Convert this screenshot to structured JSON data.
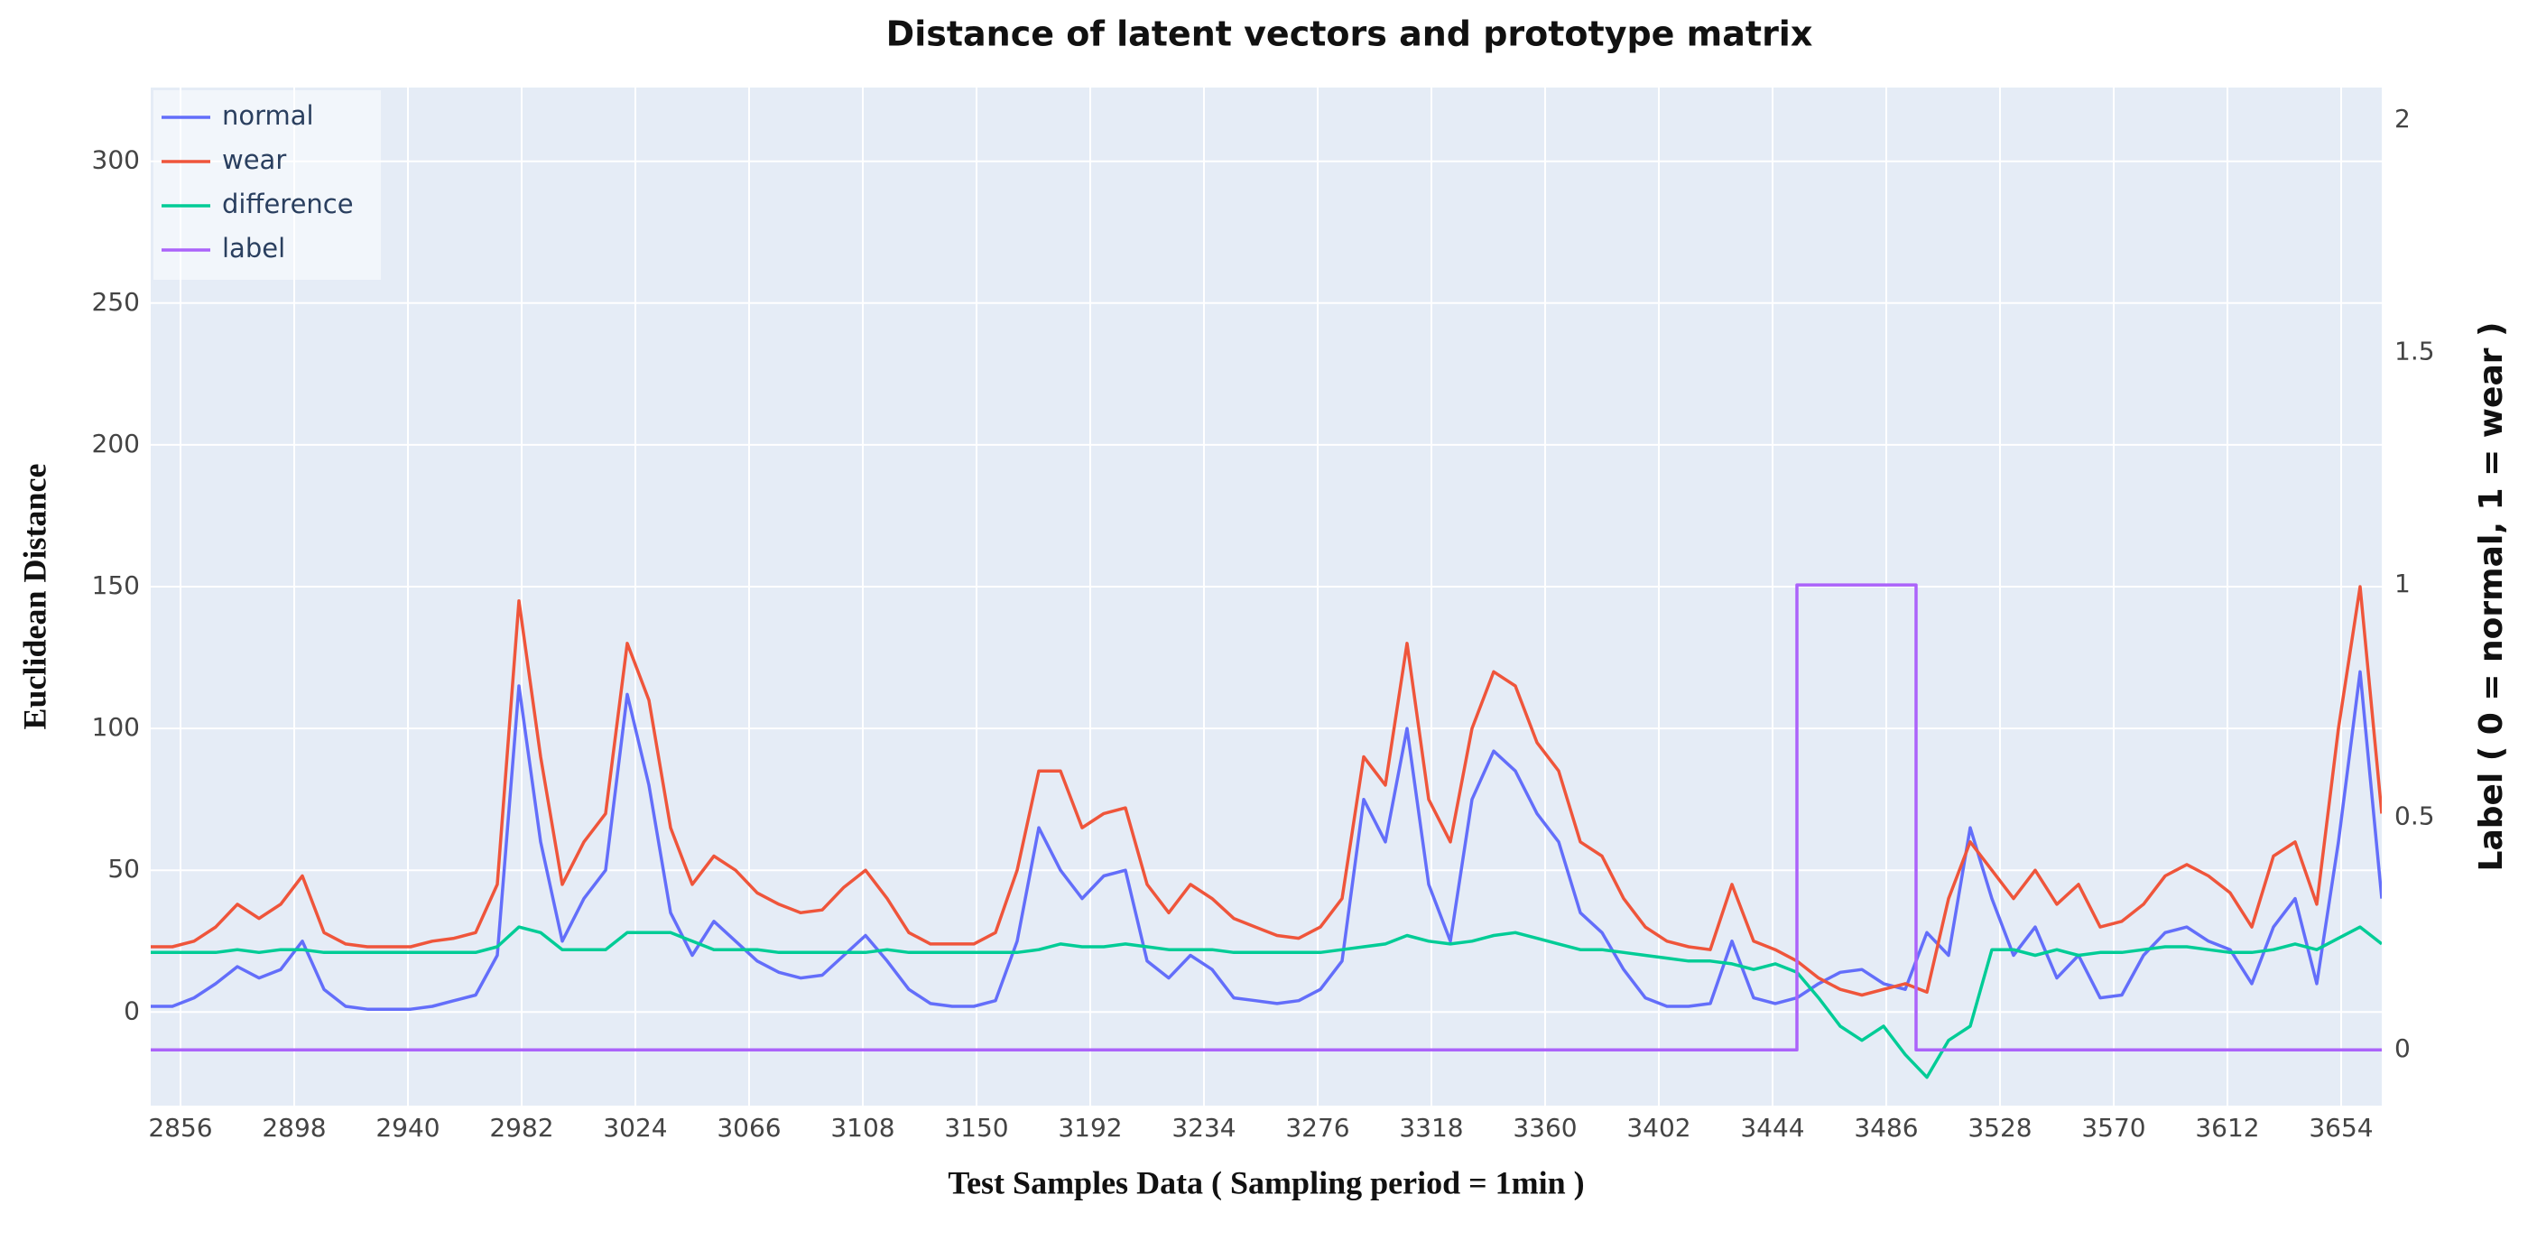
{
  "chart_data": {
    "type": "line",
    "title": "Distance of latent vectors and prototype matrix",
    "x_label": "Test Samples Data ( Sampling period = 1min )",
    "y_label": "Euclidean Distance",
    "y2_label": "Label ( 0 = normal, 1 = wear )",
    "x": [
      2845,
      2853,
      2861,
      2869,
      2877,
      2885,
      2893,
      2901,
      2909,
      2917,
      2925,
      2933,
      2941,
      2949,
      2957,
      2965,
      2973,
      2981,
      2989,
      2997,
      3005,
      3013,
      3021,
      3029,
      3037,
      3045,
      3053,
      3061,
      3069,
      3077,
      3085,
      3093,
      3101,
      3109,
      3117,
      3125,
      3133,
      3141,
      3149,
      3157,
      3165,
      3173,
      3181,
      3189,
      3197,
      3205,
      3213,
      3221,
      3229,
      3237,
      3245,
      3253,
      3261,
      3269,
      3277,
      3285,
      3293,
      3301,
      3309,
      3317,
      3325,
      3333,
      3341,
      3349,
      3357,
      3365,
      3373,
      3381,
      3389,
      3397,
      3405,
      3413,
      3421,
      3429,
      3437,
      3445,
      3453,
      3461,
      3469,
      3477,
      3485,
      3493,
      3501,
      3509,
      3517,
      3525,
      3533,
      3541,
      3549,
      3557,
      3565,
      3573,
      3581,
      3589,
      3597,
      3605,
      3613,
      3621,
      3629,
      3637,
      3645,
      3653,
      3661,
      3669
    ],
    "series": [
      {
        "name": "normal",
        "color": "#636efa",
        "values": [
          2,
          2,
          5,
          10,
          16,
          12,
          15,
          25,
          8,
          2,
          1,
          1,
          1,
          2,
          4,
          6,
          20,
          115,
          60,
          25,
          40,
          50,
          112,
          80,
          35,
          20,
          32,
          25,
          18,
          14,
          12,
          13,
          20,
          27,
          18,
          8,
          3,
          2,
          2,
          4,
          25,
          65,
          50,
          40,
          48,
          50,
          18,
          12,
          20,
          15,
          5,
          4,
          3,
          4,
          8,
          18,
          75,
          60,
          100,
          45,
          25,
          75,
          92,
          85,
          70,
          60,
          35,
          28,
          15,
          5,
          2,
          2,
          3,
          25,
          5,
          3,
          5,
          10,
          14,
          15,
          10,
          8,
          28,
          20,
          65,
          40,
          20,
          30,
          12,
          20,
          5,
          6,
          20,
          28,
          30,
          25,
          22,
          10,
          30,
          40,
          10,
          60,
          120,
          40
        ]
      },
      {
        "name": "wear",
        "color": "#ef553b",
        "values": [
          23,
          23,
          25,
          30,
          38,
          33,
          38,
          48,
          28,
          24,
          23,
          23,
          23,
          25,
          26,
          28,
          45,
          145,
          90,
          45,
          60,
          70,
          130,
          110,
          65,
          45,
          55,
          50,
          42,
          38,
          35,
          36,
          44,
          50,
          40,
          28,
          24,
          24,
          24,
          28,
          50,
          85,
          85,
          65,
          70,
          72,
          45,
          35,
          45,
          40,
          33,
          30,
          27,
          26,
          30,
          40,
          90,
          80,
          130,
          75,
          60,
          100,
          120,
          115,
          95,
          85,
          60,
          55,
          40,
          30,
          25,
          23,
          22,
          45,
          25,
          22,
          18,
          12,
          8,
          6,
          8,
          10,
          7,
          40,
          60,
          50,
          40,
          50,
          38,
          45,
          30,
          32,
          38,
          48,
          52,
          48,
          42,
          30,
          55,
          60,
          38,
          100,
          150,
          70
        ]
      },
      {
        "name": "difference",
        "color": "#00cc96",
        "values": [
          21,
          21,
          21,
          21,
          22,
          21,
          22,
          22,
          21,
          21,
          21,
          21,
          21,
          21,
          21,
          21,
          23,
          30,
          28,
          22,
          22,
          22,
          28,
          28,
          28,
          25,
          22,
          22,
          22,
          21,
          21,
          21,
          21,
          21,
          22,
          21,
          21,
          21,
          21,
          21,
          21,
          22,
          24,
          23,
          23,
          24,
          23,
          22,
          22,
          22,
          21,
          21,
          21,
          21,
          21,
          22,
          23,
          24,
          27,
          25,
          24,
          25,
          27,
          28,
          26,
          24,
          22,
          22,
          21,
          20,
          19,
          18,
          18,
          17,
          15,
          17,
          14,
          5,
          -5,
          -10,
          -5,
          -15,
          -23,
          -10,
          -5,
          22,
          22,
          20,
          22,
          20,
          21,
          21,
          22,
          23,
          23,
          22,
          21,
          21,
          22,
          24,
          22,
          26,
          30,
          24
        ]
      },
      {
        "name": "label",
        "color": "#ab63fa",
        "axis": "y2",
        "x": [
          2845,
          3453,
          3453,
          3497,
          3497,
          3669
        ],
        "values": [
          0,
          0,
          1,
          1,
          0,
          0
        ]
      }
    ],
    "xlim": [
      2845,
      3669
    ],
    "xticks": [
      2856,
      2898,
      2940,
      2982,
      3024,
      3066,
      3108,
      3150,
      3192,
      3234,
      3276,
      3318,
      3360,
      3402,
      3444,
      3486,
      3528,
      3570,
      3612,
      3654
    ],
    "ylim": [
      -33,
      326
    ],
    "yticks": [
      0,
      50,
      100,
      150,
      200,
      250,
      300
    ],
    "y2lim": [
      -0.12,
      2.07
    ],
    "y2ticks": [
      0,
      0.5,
      1,
      1.5,
      2
    ],
    "grid": true,
    "legend": "top-left"
  }
}
